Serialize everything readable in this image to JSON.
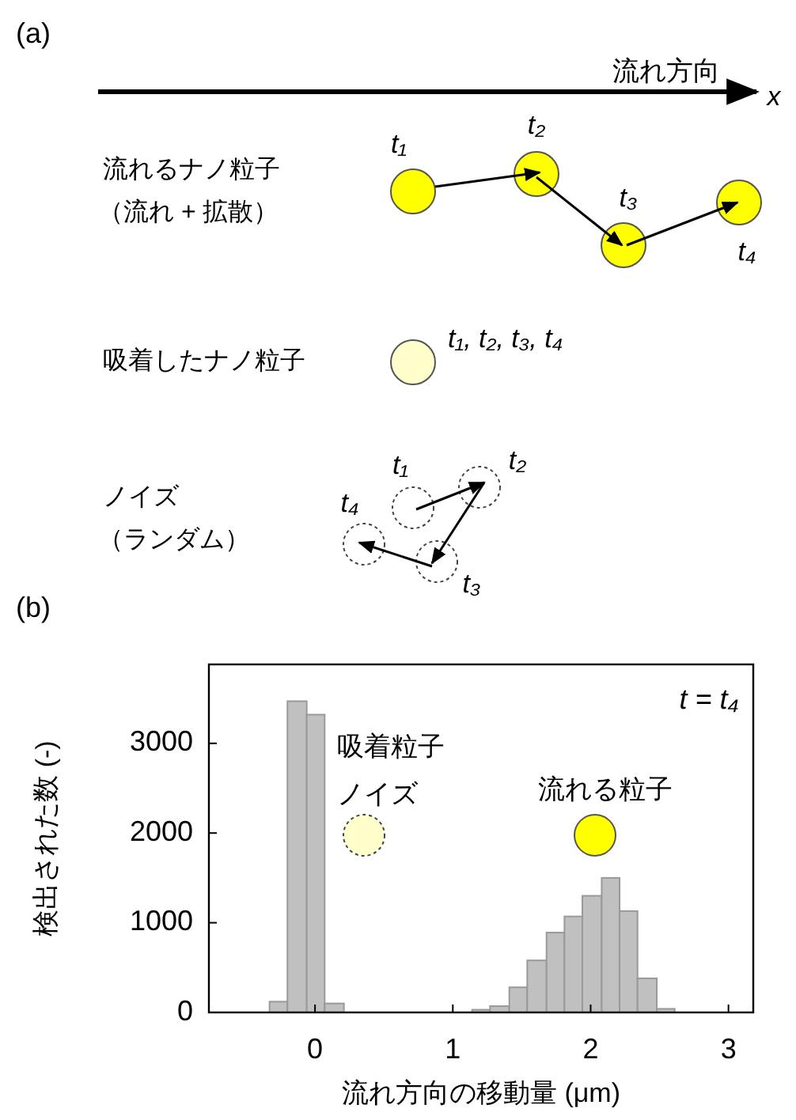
{
  "chart_data": [
    {
      "type": "other",
      "title": "(a)",
      "annotations": [
        "流れ方向",
        "x",
        "流れるナノ粒子",
        "（流れ + 拡散）",
        "t₁",
        "t₂",
        "t₃",
        "t₄",
        "吸着したナノ粒子",
        "t₁, t₂, t₃, t₄",
        "ノイズ",
        "（ランダム）",
        "t₁",
        "t₂",
        "t₃",
        "t₄"
      ]
    },
    {
      "type": "histogram",
      "title": "(b)",
      "xlabel": "流れ方向の移動量 (μm)",
      "ylabel": "検出された数 (-)",
      "color": "#c0c0c0",
      "bins": [
        -0.33,
        -0.2,
        -0.06,
        0.07,
        0.21,
        1.14,
        1.27,
        1.41,
        1.54,
        1.68,
        1.81,
        1.94,
        2.08,
        2.21,
        2.34,
        2.48,
        2.61
      ],
      "values": [
        120,
        3470,
        3320,
        100,
        0,
        30,
        70,
        280,
        580,
        890,
        1070,
        1300,
        1500,
        1130,
        380,
        40
      ],
      "xlim": [
        -0.77,
        3.18
      ],
      "ylim": [
        0,
        3880
      ],
      "xticks": [
        0,
        1,
        2,
        3
      ],
      "yticks": [
        0,
        1000,
        2000,
        3000
      ],
      "annotations": [
        "t = t₄",
        "吸着粒子",
        "ノイズ",
        "流れる粒子"
      ]
    }
  ]
}
